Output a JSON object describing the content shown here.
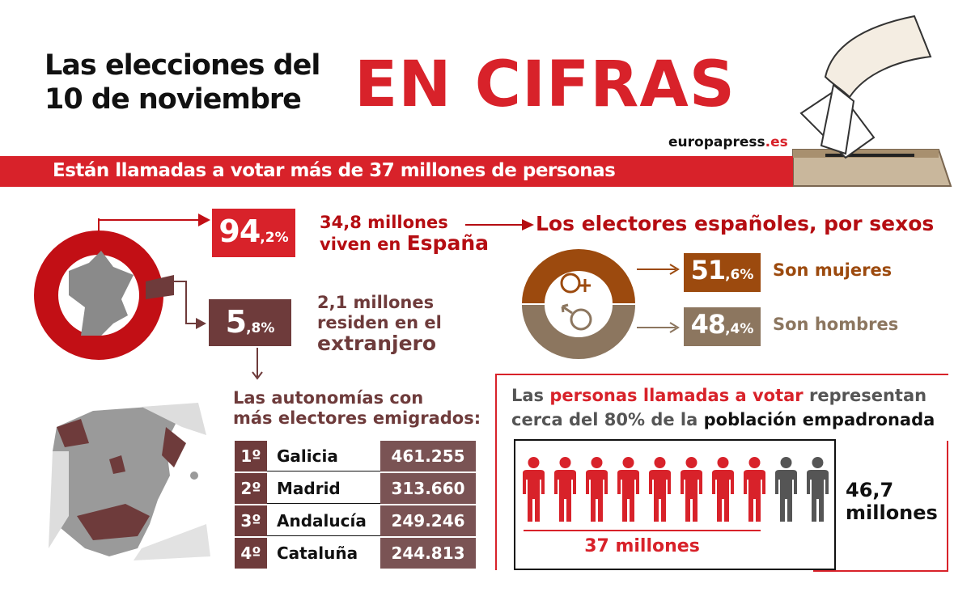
{
  "header": {
    "title_line1": "Las elecciones del",
    "title_line2": "10 de noviembre",
    "title_highlight": "EN CIFRAS",
    "source_prefix": "europapress",
    "source_suffix": ".es"
  },
  "banner": "Están llamadas a votar más de 37 millones de personas",
  "residence": {
    "spain": {
      "pct_int": "94",
      "pct_dec": ",2%",
      "line1": "34,8 millones",
      "line2_a": "viven en ",
      "line2_b": "España",
      "value": 94.2
    },
    "abroad": {
      "pct_int": "5",
      "pct_dec": ",8%",
      "line1": "2,1 millones",
      "line2": "residen en el",
      "line3": "extranjero",
      "value": 5.8
    }
  },
  "gender": {
    "title": "Los electores españoles, por sexos",
    "women": {
      "pct_int": "51",
      "pct_dec": ",6%",
      "label": "Son mujeres",
      "value": 51.6
    },
    "men": {
      "pct_int": "48",
      "pct_dec": ",4%",
      "label": "Son hombres",
      "value": 48.4
    }
  },
  "emigrants": {
    "heading_line1": "Las autonomías con",
    "heading_line2": "más electores emigrados:",
    "rows": [
      {
        "rank": "1º",
        "name": "Galicia",
        "value": "461.255"
      },
      {
        "rank": "2º",
        "name": "Madrid",
        "value": "313.660"
      },
      {
        "rank": "3º",
        "name": "Andalucía",
        "value": "249.246"
      },
      {
        "rank": "4º",
        "name": "Cataluña",
        "value": "244.813"
      }
    ]
  },
  "population": {
    "h_a": "Las ",
    "h_b": "personas llamadas a votar",
    "h_c": " representan",
    "h_d": "cerca del 80% de la ",
    "h_e": "población empadronada",
    "voters": "37 millones",
    "total_line1": "46,7",
    "total_line2": "millones",
    "figures_red": 8,
    "figures_total": 10
  },
  "colors": {
    "red": "#d8222a",
    "darkred": "#b50d12",
    "maroon": "#6e3b3b",
    "brown": "#9c4a0e",
    "taupe": "#8c765f",
    "gray": "#555555"
  }
}
